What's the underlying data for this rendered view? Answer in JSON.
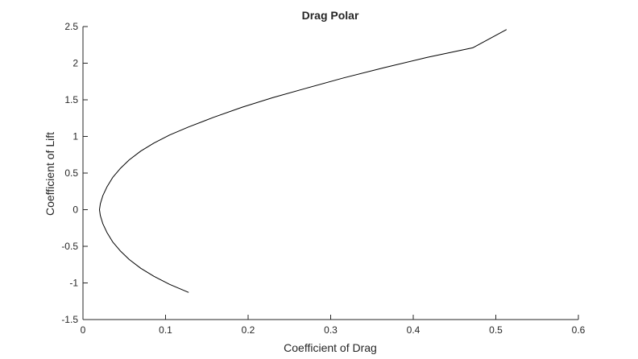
{
  "chart_data": {
    "type": "line",
    "title": "Drag Polar",
    "xlabel": "Coefficient of Drag",
    "ylabel": "Coefficient of Lift",
    "xlim": [
      0,
      0.6
    ],
    "ylim": [
      -1.5,
      2.5
    ],
    "xticks": [
      0,
      0.1,
      0.2,
      0.3,
      0.4,
      0.5,
      0.6
    ],
    "xtick_labels": [
      "0",
      "0.1",
      "0.2",
      "0.3",
      "0.4",
      "0.5",
      "0.6"
    ],
    "yticks": [
      -1.5,
      -1,
      -0.5,
      0,
      0.5,
      1,
      1.5,
      2,
      2.5
    ],
    "ytick_labels": [
      "-1.5",
      "-1",
      "-0.5",
      "0",
      "0.5",
      "1",
      "1.5",
      "2",
      "2.5"
    ],
    "grid": false,
    "legend": "none",
    "line_color": "#000000",
    "series": [
      {
        "x": [
          0.128,
          0.105,
          0.086,
          0.07,
          0.056,
          0.045,
          0.036,
          0.029,
          0.024,
          0.021,
          0.02,
          0.021,
          0.024,
          0.029,
          0.036,
          0.045,
          0.056,
          0.07,
          0.086,
          0.105,
          0.128,
          0.158,
          0.193,
          0.23,
          0.271,
          0.316,
          0.365,
          0.417,
          0.472,
          0.513
        ],
        "y": [
          -1.13,
          -1.02,
          -0.91,
          -0.8,
          -0.68,
          -0.56,
          -0.44,
          -0.31,
          -0.19,
          -0.08,
          0.0,
          0.08,
          0.19,
          0.31,
          0.44,
          0.56,
          0.68,
          0.8,
          0.91,
          1.02,
          1.13,
          1.26,
          1.4,
          1.53,
          1.66,
          1.8,
          1.94,
          2.08,
          2.21,
          2.46
        ]
      }
    ]
  }
}
